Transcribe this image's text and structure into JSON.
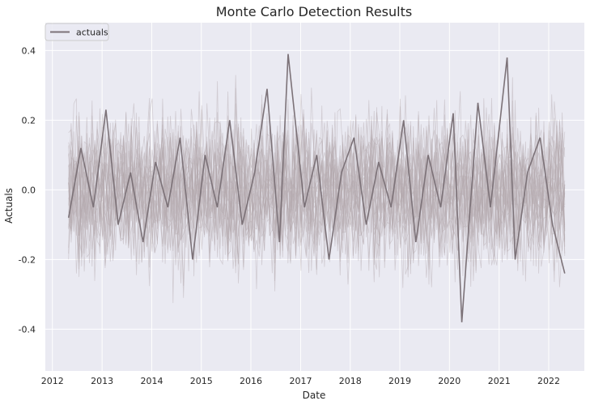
{
  "chart_data": {
    "type": "line",
    "title": "Monte Carlo Detection Results",
    "xlabel": "Date",
    "ylabel": "Actuals",
    "x_range": [
      "2011-11-10",
      "2022-09-20"
    ],
    "ylim": [
      -0.52,
      0.48
    ],
    "x_ticks": [
      "2012-01-01",
      "2013-01-01",
      "2014-01-01",
      "2015-01-01",
      "2016-01-01",
      "2017-01-01",
      "2018-01-01",
      "2019-01-01",
      "2020-01-01",
      "2021-01-01",
      "2022-01-01"
    ],
    "x_tick_labels": [
      "2012",
      "2013",
      "2014",
      "2015",
      "2016",
      "2017",
      "2018",
      "2019",
      "2020",
      "2021",
      "2022"
    ],
    "y_ticks": [
      -0.4,
      -0.2,
      0.0,
      0.2,
      0.4
    ],
    "y_tick_labels": [
      "-0.4",
      "-0.2",
      "0.0",
      "0.2",
      "0.4"
    ],
    "grid": true,
    "legend": {
      "placement": "top-left",
      "entries": [
        "actuals"
      ]
    },
    "colors": {
      "background": "#eaeaf2",
      "grid": "#ffffff",
      "actuals_line": "#7c7278",
      "simulation_line": "#b3a9ae"
    },
    "series": [
      {
        "name": "actuals",
        "x": [
          "2012-04-29",
          "2012-07-29",
          "2012-10-29",
          "2013-01-29",
          "2013-04-29",
          "2013-07-29",
          "2013-10-29",
          "2014-01-29",
          "2014-04-29",
          "2014-07-29",
          "2014-10-29",
          "2015-01-29",
          "2015-04-29",
          "2015-07-29",
          "2015-10-29",
          "2016-01-29",
          "2016-04-29",
          "2016-07-29",
          "2016-10-01",
          "2017-01-29",
          "2017-04-29",
          "2017-07-29",
          "2017-10-29",
          "2018-01-29",
          "2018-04-29",
          "2018-07-29",
          "2018-10-29",
          "2019-01-29",
          "2019-04-29",
          "2019-07-29",
          "2019-10-29",
          "2020-01-29",
          "2020-04-01",
          "2020-07-29",
          "2020-10-29",
          "2021-03-01",
          "2021-04-29",
          "2021-07-29",
          "2021-10-29",
          "2022-01-29",
          "2022-04-29"
        ],
        "y": [
          -0.08,
          0.12,
          -0.05,
          0.23,
          -0.1,
          0.05,
          -0.15,
          0.08,
          -0.05,
          0.15,
          -0.2,
          0.1,
          -0.05,
          0.2,
          -0.1,
          0.05,
          0.29,
          -0.15,
          0.39,
          -0.05,
          0.1,
          -0.2,
          0.05,
          0.15,
          -0.1,
          0.08,
          -0.05,
          0.2,
          -0.15,
          0.1,
          -0.05,
          0.22,
          -0.38,
          0.25,
          -0.05,
          0.38,
          -0.2,
          0.05,
          0.15,
          -0.1,
          -0.24
        ]
      }
    ]
  }
}
